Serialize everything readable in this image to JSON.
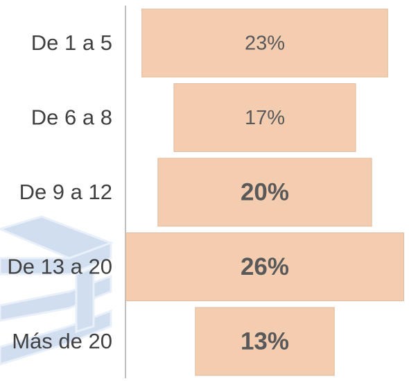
{
  "chart_data": {
    "type": "funnel",
    "categories": [
      "De 1 a 5",
      "De 6 a 8",
      "De 9 a 12",
      "De 13 a 20",
      "Más de 20"
    ],
    "values": [
      23,
      17,
      20,
      26,
      13
    ],
    "value_labels": [
      "23%",
      "17%",
      "20%",
      "26%",
      "13%"
    ],
    "color": "#f4cdb0"
  }
}
